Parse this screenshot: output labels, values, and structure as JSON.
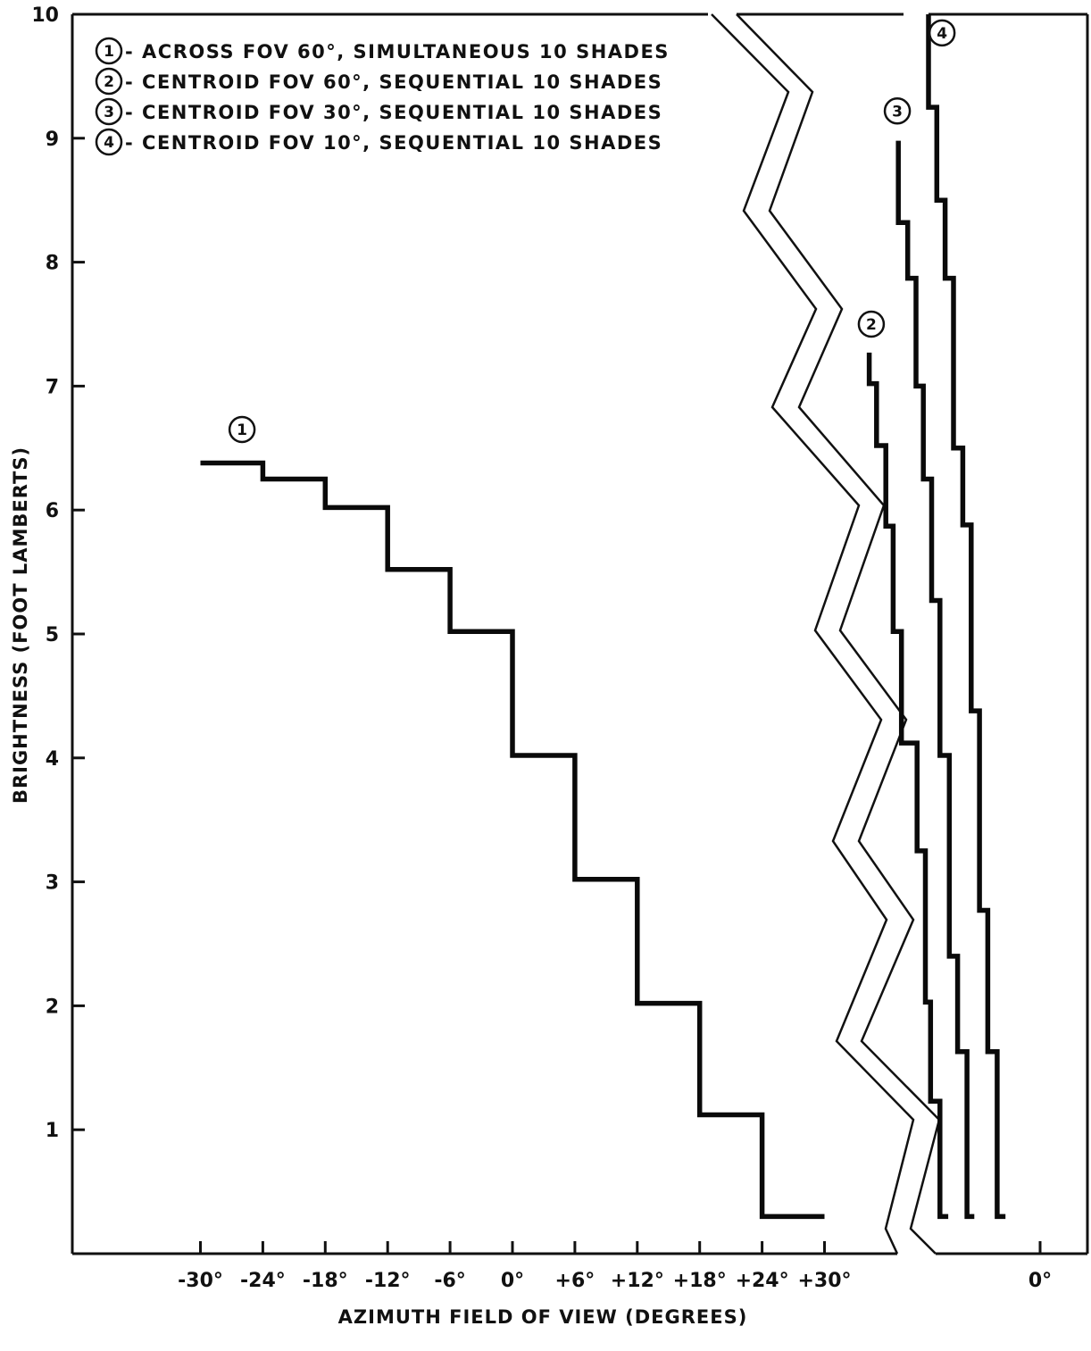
{
  "chart_data": {
    "type": "line",
    "title": "",
    "xlabel": "AZIMUTH FIELD OF VIEW (DEGREES)",
    "ylabel": "BRIGHTNESS (FOOT LAMBERTS)",
    "ylim": [
      0,
      10
    ],
    "y_ticks": [
      "1",
      "2",
      "3",
      "4",
      "5",
      "6",
      "7",
      "8",
      "9",
      "10"
    ],
    "x_ticks_panel1": [
      "-30°",
      "-24°",
      "-18°",
      "-12°",
      "-6°",
      "0°",
      "+6°",
      "+12°",
      "+18°",
      "+24°",
      "+30°"
    ],
    "x_ticks_right": [
      "0°"
    ],
    "grid": false,
    "legend_position": "top-left",
    "legend": [
      {
        "marker": "1",
        "text": "- ACROSS FOV 60°, SIMULTANEOUS 10 SHADES"
      },
      {
        "marker": "2",
        "text": "- CENTROID FOV 60°, SEQUENTIAL 10 SHADES"
      },
      {
        "marker": "3",
        "text": "- CENTROID FOV 30°, SEQUENTIAL 10 SHADES"
      },
      {
        "marker": "4",
        "text": "- CENTROID FOV 10°, SEQUENTIAL 10 SHADES"
      }
    ],
    "series": [
      {
        "name": "1",
        "label_at": {
          "x": -26,
          "y": 6.65
        },
        "points": [
          [
            -30,
            6.38
          ],
          [
            -24,
            6.38
          ],
          [
            -24,
            6.25
          ],
          [
            -18,
            6.25
          ],
          [
            -18,
            6.02
          ],
          [
            -12,
            6.02
          ],
          [
            -12,
            5.52
          ],
          [
            -6,
            5.52
          ],
          [
            -6,
            5.02
          ],
          [
            0,
            5.02
          ],
          [
            0,
            4.02
          ],
          [
            6,
            4.02
          ],
          [
            6,
            3.02
          ],
          [
            12,
            3.02
          ],
          [
            12,
            2.02
          ],
          [
            18,
            2.02
          ],
          [
            18,
            1.12
          ],
          [
            24,
            1.12
          ],
          [
            24,
            0.3
          ],
          [
            30,
            0.3
          ]
        ]
      },
      {
        "name": "2",
        "label_at": {
          "x": 34.5,
          "y": 7.5
        },
        "points": [
          [
            34.3,
            7.27
          ],
          [
            34.3,
            7.02
          ],
          [
            35.0,
            7.02
          ],
          [
            35.0,
            6.52
          ],
          [
            35.9,
            6.52
          ],
          [
            35.9,
            5.87
          ],
          [
            36.6,
            5.87
          ],
          [
            36.6,
            5.02
          ],
          [
            37.4,
            5.02
          ],
          [
            37.4,
            4.12
          ],
          [
            38.9,
            4.12
          ],
          [
            38.9,
            3.25
          ],
          [
            39.7,
            3.25
          ],
          [
            39.7,
            2.03
          ],
          [
            40.2,
            2.03
          ],
          [
            40.2,
            1.23
          ],
          [
            41.1,
            1.23
          ],
          [
            41.1,
            0.3
          ],
          [
            41.9,
            0.3
          ]
        ]
      },
      {
        "name": "3",
        "label_at": {
          "x": 37.0,
          "y": 9.22
        },
        "points": [
          [
            37.1,
            8.98
          ],
          [
            37.1,
            8.32
          ],
          [
            38.0,
            8.32
          ],
          [
            38.0,
            7.87
          ],
          [
            38.8,
            7.87
          ],
          [
            38.8,
            7.0
          ],
          [
            39.5,
            7.0
          ],
          [
            39.5,
            6.25
          ],
          [
            40.3,
            6.25
          ],
          [
            40.3,
            5.27
          ],
          [
            41.1,
            5.27
          ],
          [
            41.1,
            4.02
          ],
          [
            42.0,
            4.02
          ],
          [
            42.0,
            2.4
          ],
          [
            42.8,
            2.4
          ],
          [
            42.8,
            1.63
          ],
          [
            43.7,
            1.63
          ],
          [
            43.7,
            0.3
          ],
          [
            44.4,
            0.3
          ]
        ]
      },
      {
        "name": "4",
        "label_at": {
          "x": 41.3,
          "y": 9.85
        },
        "points": [
          [
            40.0,
            10.0
          ],
          [
            40.0,
            9.25
          ],
          [
            40.8,
            9.25
          ],
          [
            40.8,
            8.5
          ],
          [
            41.6,
            8.5
          ],
          [
            41.6,
            7.87
          ],
          [
            42.4,
            7.87
          ],
          [
            42.4,
            6.5
          ],
          [
            43.3,
            6.5
          ],
          [
            43.3,
            5.88
          ],
          [
            44.1,
            5.88
          ],
          [
            44.1,
            4.38
          ],
          [
            44.9,
            4.38
          ],
          [
            44.9,
            2.77
          ],
          [
            45.7,
            2.77
          ],
          [
            45.7,
            1.63
          ],
          [
            46.6,
            1.63
          ],
          [
            46.6,
            0.3
          ],
          [
            47.4,
            0.3
          ]
        ]
      }
    ]
  }
}
